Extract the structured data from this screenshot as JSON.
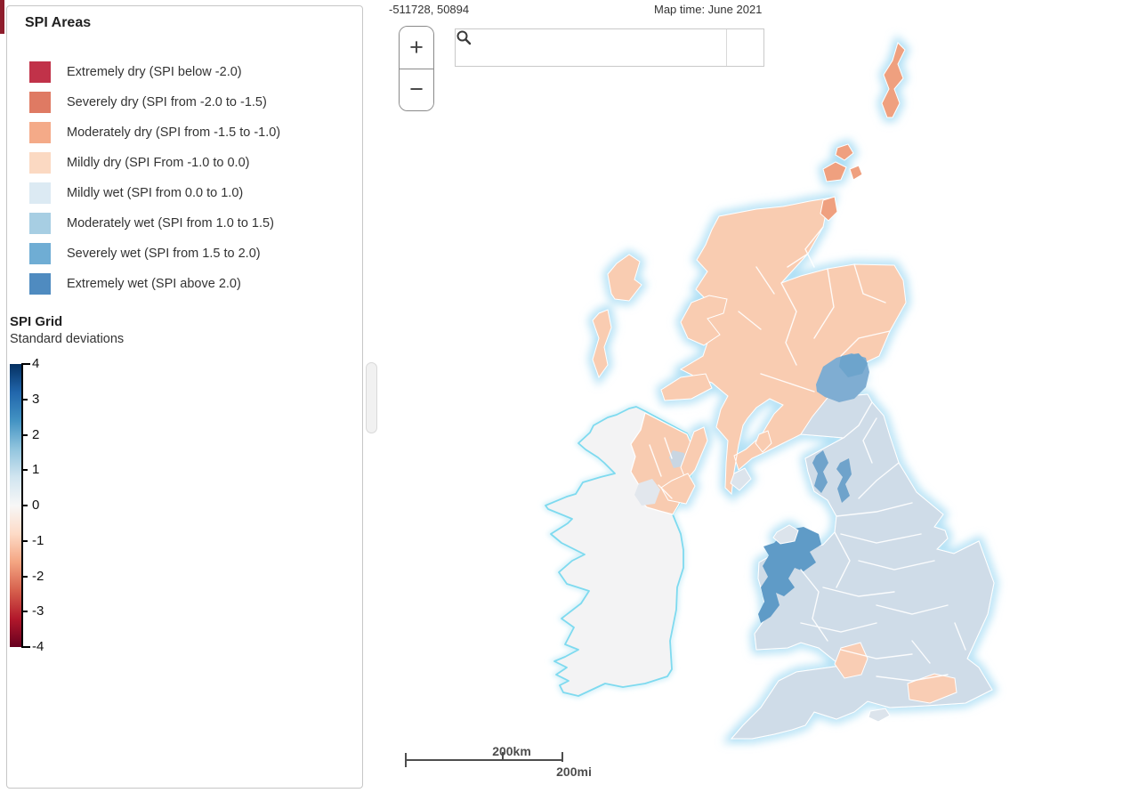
{
  "legend_panel": {
    "areas_title": "SPI Areas",
    "items": [
      {
        "label": "Extremely dry (SPI below -2.0)",
        "color": "#c13249"
      },
      {
        "label": "Severely dry (SPI from -2.0 to -1.5)",
        "color": "#df7a63"
      },
      {
        "label": "Moderately dry (SPI from -1.5 to -1.0)",
        "color": "#f4aa88"
      },
      {
        "label": "Mildly dry (SPI From -1.0 to 0.0)",
        "color": "#fbd9c2"
      },
      {
        "label": "Mildly wet (SPI from 0.0 to 1.0)",
        "color": "#dceaf3"
      },
      {
        "label": "Moderately wet (SPI from 1.0 to 1.5)",
        "color": "#a7cee3"
      },
      {
        "label": "Severely wet (SPI from 1.5 to 2.0)",
        "color": "#6fadd4"
      },
      {
        "label": "Extremely wet (SPI above 2.0)",
        "color": "#4f8bc0"
      }
    ],
    "grid_title": "SPI Grid",
    "grid_subtitle": "Standard deviations",
    "colorbar": {
      "ticks": [
        "4",
        "3",
        "2",
        "1",
        "0",
        "-1",
        "-2",
        "-3",
        "-4"
      ],
      "gradient_stops": [
        "#053061",
        "#2166ac",
        "#4393c3",
        "#92c5de",
        "#d1e5f0",
        "#f7f7f7",
        "#fddbc7",
        "#f4a582",
        "#d6604d",
        "#b2182b",
        "#67001f"
      ]
    }
  },
  "map": {
    "coordinates_readout": "-511728, 50894",
    "map_time_label": "Map time: June 2021",
    "zoom_in_label": "+",
    "zoom_out_label": "−",
    "search_placeholder": "",
    "search_icon": "magnifier",
    "scale_km": "200km",
    "scale_mi": "200mi",
    "colors": {
      "scotland": "#f9ccb1",
      "northernIreland": "#f8cbb0",
      "englandWales": "#cfdce8",
      "bordersWet": "#7fadd2",
      "bordersWetDark": "#6da4cc",
      "lakesWet": "#6fa3cb",
      "walesWet": "#5f9bc7",
      "dryPatch": "#f9cdb4",
      "orange": "#efa07f",
      "ireland": "#f3f3f4",
      "irelandCoast": "#7edaef",
      "glow": "#a8ddf4",
      "irelandGlow": "#cdeef8",
      "loughNeagh": "#c9d6e2",
      "grayPatch": "#e2e7ed",
      "grayIsland": "#dce4ec",
      "countyLine": "#ffffff"
    }
  }
}
